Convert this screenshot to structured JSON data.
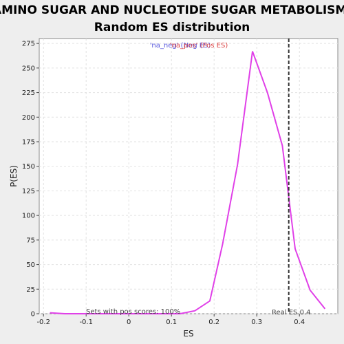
{
  "chart_data": {
    "type": "line",
    "title_line1": "AMINO SUGAR AND NUCLEOTIDE SUGAR METABOLISM:",
    "title_line2": "Random ES distribution",
    "xlabel": "ES",
    "ylabel": "P(ES)",
    "xlim": [
      -0.21,
      0.49
    ],
    "ylim": [
      0,
      280
    ],
    "x_ticks": [
      -0.2,
      -0.1,
      0.0,
      0.1,
      0.2,
      0.3,
      0.4
    ],
    "x_tick_labels": [
      "-0.2",
      "-0.1",
      "0",
      "0.1",
      "0.2",
      "0.3",
      "0.4"
    ],
    "y_ticks": [
      0,
      25,
      50,
      75,
      100,
      125,
      150,
      175,
      200,
      225,
      250,
      275
    ],
    "y_tick_labels": [
      "0",
      "25",
      "50",
      "75",
      "100",
      "125",
      "150",
      "175",
      "200",
      "225",
      "250",
      "275"
    ],
    "grid": true,
    "series": [
      {
        "color": "#e040e8",
        "x": [
          -0.185,
          -0.15,
          -0.115,
          -0.08,
          -0.045,
          -0.01,
          0.025,
          0.06,
          0.09,
          0.12,
          0.155,
          0.19,
          0.22,
          0.255,
          0.29,
          0.325,
          0.36,
          0.39,
          0.425,
          0.46
        ],
        "y": [
          1,
          0,
          0,
          0,
          0,
          0,
          0,
          0,
          0,
          0,
          3,
          13,
          71,
          152,
          267,
          225,
          171,
          66,
          24,
          5
        ]
      }
    ],
    "real_es": {
      "x": 0.375,
      "label": "Real ES 0.4",
      "color": "#333333"
    },
    "legend_label_neg": "'na_neg' (Neg ES)",
    "legend_label_pos": "'na_pos' (Pos ES)",
    "legend_color_neg": "#5555dd",
    "legend_color_pos": "#dd4444",
    "annotation_pos_scores": "Sets with pos scores: 100%"
  }
}
